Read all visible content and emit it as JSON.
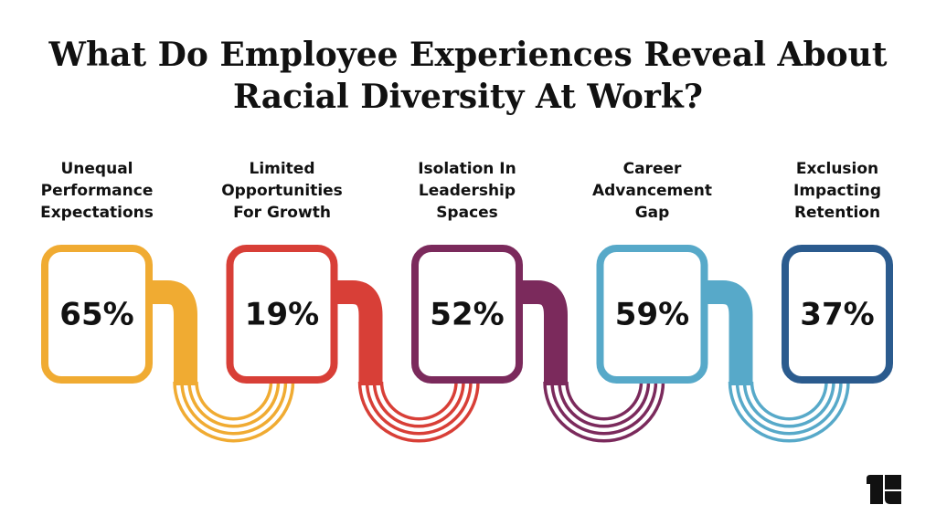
{
  "title": [
    "What Do Employee Experiences Reveal About",
    "Racial Diversity At Work?"
  ],
  "items": [
    {
      "label": [
        "Unequal",
        "Performance",
        "Expectations"
      ],
      "value": "65%",
      "color": "#f0ab32"
    },
    {
      "label": [
        "Limited",
        "Opportunities",
        "For Growth"
      ],
      "value": "19%",
      "color": "#d83f37"
    },
    {
      "label": [
        "Isolation In",
        "Leadership",
        "Spaces"
      ],
      "value": "52%",
      "color": "#7b2a5c"
    },
    {
      "label": [
        "Career",
        "Advancement",
        "Gap"
      ],
      "value": "59%",
      "color": "#57a9c9"
    },
    {
      "label": [
        "Exclusion",
        "Impacting",
        "Retention"
      ],
      "value": "37%",
      "color": "#2b5b8e"
    }
  ]
}
